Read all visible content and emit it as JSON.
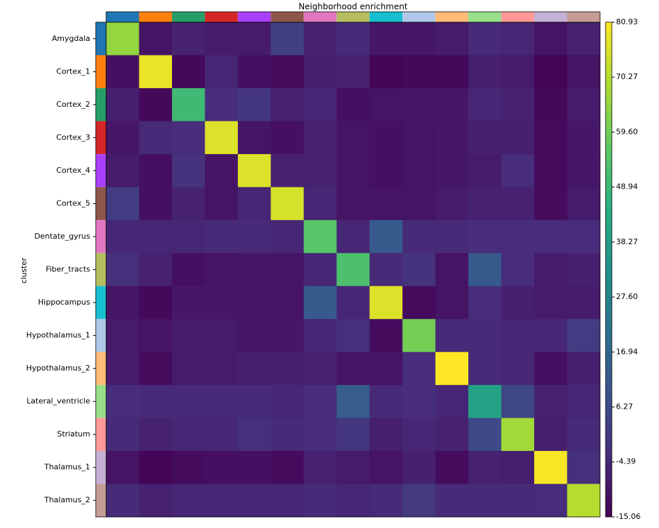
{
  "chart_data": {
    "type": "heatmap",
    "title": "Neighborhood enrichment",
    "ylabel": "cluster",
    "categories": [
      "Amygdala",
      "Cortex_1",
      "Cortex_2",
      "Cortex_3",
      "Cortex_4",
      "Cortex_5",
      "Dentate_gyrus",
      "Fiber_tracts",
      "Hippocampus",
      "Hypothalamus_1",
      "Hypothalamus_2",
      "Lateral_ventricle",
      "Striatum",
      "Thalamus_1",
      "Thalamus_2"
    ],
    "category_colors": [
      "#1f77b4",
      "#ff7f0e",
      "#279e68",
      "#d62728",
      "#aa40fc",
      "#8c564b",
      "#e377c2",
      "#b5bd61",
      "#17becf",
      "#aec7e8",
      "#ffbb78",
      "#98df8a",
      "#ff9896",
      "#c5b0d5",
      "#c49c94"
    ],
    "colormap": "viridis",
    "values": [
      [
        65,
        -10,
        -6,
        -8,
        -8,
        3,
        -6,
        -4,
        -9,
        -9,
        -8,
        -4,
        -5,
        -10,
        -6
      ],
      [
        -11,
        78,
        -13,
        -5,
        -11,
        -12,
        -7,
        -6,
        -14,
        -13,
        -13,
        -7,
        -8,
        -14,
        -10
      ],
      [
        -7,
        -13,
        50,
        -3,
        0,
        -6,
        -5,
        -11,
        -10,
        -9,
        -9,
        -5,
        -6,
        -13,
        -8
      ],
      [
        -9,
        -4,
        -3,
        76,
        -10,
        -11,
        -6,
        -10,
        -11,
        -10,
        -9,
        -7,
        -7,
        -12,
        -9
      ],
      [
        -8,
        -11,
        -1,
        -10,
        76,
        -6,
        -6,
        -10,
        -11,
        -10,
        -9,
        -8,
        -3,
        -12,
        -9
      ],
      [
        2,
        -11,
        -6,
        -10,
        -5,
        75,
        -5,
        -10,
        -10,
        -10,
        -8,
        -6,
        -6,
        -12,
        -8
      ],
      [
        -5,
        -5,
        -5,
        -4,
        -4,
        -5,
        55,
        -5,
        12,
        -4,
        -4,
        -3,
        -3,
        -3,
        -3
      ],
      [
        -2,
        -6,
        -11,
        -10,
        -9,
        -10,
        -5,
        53,
        -4,
        -1,
        -10,
        12,
        -3,
        -8,
        -7
      ],
      [
        -10,
        -13,
        -9,
        -9,
        -9,
        -10,
        12,
        -5,
        76,
        -12,
        -10,
        -3,
        -7,
        -8,
        -8
      ],
      [
        -8,
        -10,
        -8,
        -8,
        -9,
        -9,
        -5,
        -2,
        -12,
        60,
        -4,
        -4,
        -5,
        -5,
        2
      ],
      [
        -8,
        -12,
        -8,
        -8,
        -7,
        -7,
        -6,
        -10,
        -10,
        -3,
        80.93,
        -4,
        -5,
        -11,
        -7
      ],
      [
        -3,
        -4,
        -4,
        -4,
        -4,
        -5,
        -3,
        13,
        -4,
        -3,
        -5,
        40,
        5,
        -6,
        -5
      ],
      [
        -4,
        -6,
        -5,
        -5,
        -2,
        -4,
        -3,
        0,
        -7,
        -5,
        -6,
        6,
        67,
        -7,
        -4
      ],
      [
        -10,
        -14,
        -12,
        -11,
        -11,
        -12,
        -6,
        -8,
        -10,
        -7,
        -12,
        -6,
        -7,
        80,
        -2
      ],
      [
        -4,
        -6,
        -5,
        -5,
        -5,
        -5,
        -4,
        -5,
        -4,
        1,
        -4,
        -4,
        -4,
        -3,
        70
      ]
    ],
    "zlim": [
      -15.06,
      80.93
    ],
    "zticks": [
      -15.06,
      -4.39,
      6.27,
      16.94,
      {
        "value": 27.6,
        "label": "27.60"
      },
      38.27,
      48.94,
      {
        "value": 59.6,
        "label": "59.60"
      },
      70.27,
      80.93
    ]
  }
}
